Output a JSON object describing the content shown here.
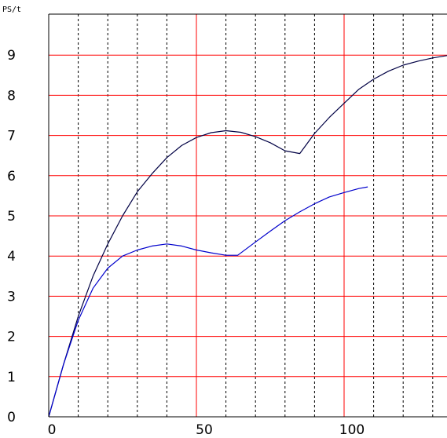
{
  "chart_data": {
    "type": "line",
    "title": "",
    "ylabel": "PS/t",
    "xlabel": "",
    "xlim": [
      0,
      135
    ],
    "ylim": [
      0,
      10
    ],
    "x_ticks": [
      0,
      50,
      100
    ],
    "y_ticks": [
      0,
      1,
      2,
      3,
      4,
      5,
      6,
      7,
      8,
      9
    ],
    "major_grid_x": [
      0,
      50,
      100
    ],
    "minor_grid_x": [
      10,
      20,
      30,
      40,
      60,
      70,
      80,
      90,
      110,
      120,
      130
    ],
    "major_grid_y": [
      1,
      2,
      3,
      4,
      5,
      6,
      7,
      8,
      9
    ],
    "grid": true,
    "series": [
      {
        "color": "#000044",
        "x": [
          0,
          5,
          10,
          15,
          20,
          25,
          30,
          35,
          40,
          45,
          50,
          55,
          60,
          65,
          70,
          75,
          80,
          85,
          90,
          95,
          100,
          105,
          110,
          115,
          120,
          125,
          130,
          135
        ],
        "y": [
          0,
          1.3,
          2.5,
          3.5,
          4.3,
          5.0,
          5.6,
          6.05,
          6.45,
          6.75,
          6.95,
          7.07,
          7.12,
          7.08,
          6.97,
          6.82,
          6.62,
          6.55,
          7.05,
          7.45,
          7.8,
          8.15,
          8.4,
          8.6,
          8.75,
          8.85,
          8.93,
          8.99
        ]
      },
      {
        "color": "#0000cc",
        "x": [
          0,
          5,
          10,
          15,
          20,
          25,
          30,
          35,
          40,
          45,
          50,
          55,
          60,
          64,
          70,
          75,
          80,
          85,
          90,
          95,
          100,
          105,
          108
        ],
        "y": [
          0,
          1.3,
          2.4,
          3.2,
          3.7,
          4.0,
          4.15,
          4.25,
          4.3,
          4.25,
          4.15,
          4.08,
          4.02,
          4.02,
          4.35,
          4.62,
          4.88,
          5.1,
          5.3,
          5.47,
          5.58,
          5.68,
          5.72
        ]
      }
    ]
  },
  "colors": {
    "axis": "#000000",
    "major_grid": "#ff0000",
    "minor_grid": "#000000",
    "background": "#ffffff"
  }
}
